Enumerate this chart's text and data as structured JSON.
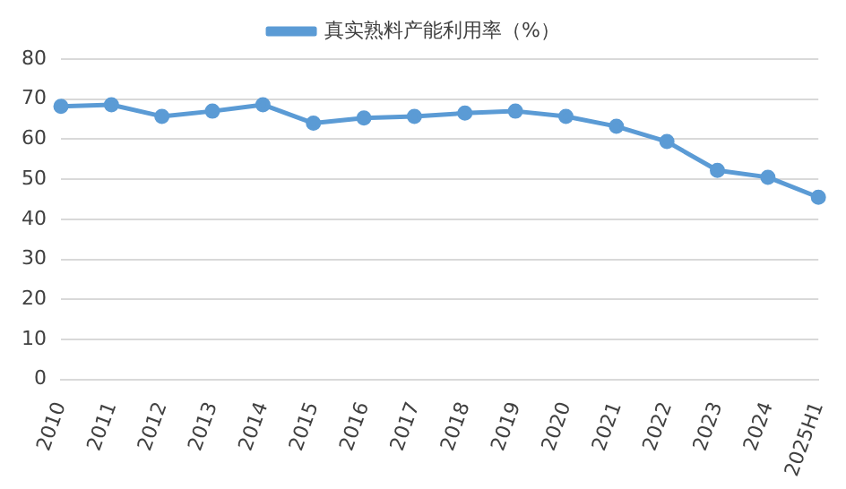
{
  "chart_data": {
    "type": "line",
    "categories": [
      "2010",
      "2011",
      "2012",
      "2013",
      "2014",
      "2015",
      "2016",
      "2017",
      "2018",
      "2019",
      "2020",
      "2021",
      "2022",
      "2023",
      "2024",
      "2025H1"
    ],
    "series": [
      {
        "name": "真实熟料产能利用率（%）",
        "color": "#5b9bd5",
        "values": [
          68.2,
          68.6,
          65.7,
          67,
          68.6,
          64,
          65.3,
          65.7,
          66.5,
          67,
          65.7,
          63.2,
          59.4,
          52.2,
          50.5,
          45.5
        ]
      }
    ],
    "ylim": [
      0,
      80
    ],
    "yticks": [
      0,
      10,
      20,
      30,
      40,
      50,
      60,
      70,
      80
    ],
    "grid": "y",
    "legend": "top",
    "marker": "circle",
    "line_style": "solid"
  }
}
